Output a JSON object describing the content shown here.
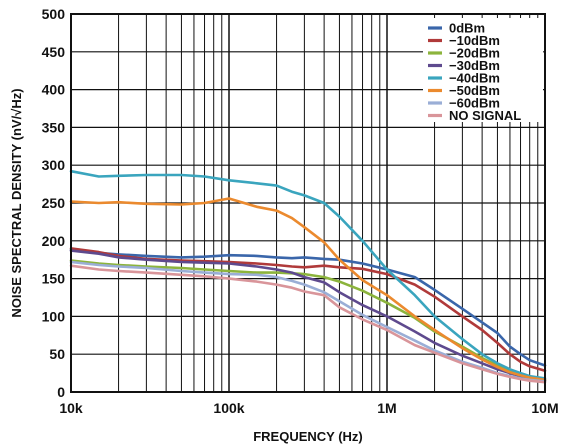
{
  "chart_data": {
    "type": "line",
    "title": "",
    "xlabel": "FREQUENCY (Hz)",
    "ylabel": "NOISE SPECTRAL DENSITY (nV/√Hz)",
    "x_scale": "log",
    "xlim": [
      10000,
      10000000
    ],
    "ylim": [
      0,
      500
    ],
    "x_ticks": [
      10000,
      100000,
      1000000,
      10000000
    ],
    "x_tick_labels": [
      "10k",
      "100k",
      "1M",
      "10M"
    ],
    "y_ticks": [
      0,
      50,
      100,
      150,
      200,
      250,
      300,
      350,
      400,
      450,
      500
    ],
    "y_tick_labels": [
      "0",
      "50",
      "100",
      "150",
      "200",
      "250",
      "300",
      "350",
      "400",
      "450",
      "500"
    ],
    "grid": true,
    "legend_position": "top-right",
    "series": [
      {
        "name": "0dBm",
        "color": "#3A66AA",
        "x": [
          10000,
          15000,
          20000,
          30000,
          50000,
          70000,
          100000,
          150000,
          200000,
          250000,
          300000,
          400000,
          500000,
          700000,
          1000000,
          1500000,
          2000000,
          3000000,
          4000000,
          5000000,
          6000000,
          7000000,
          8000000,
          10000000
        ],
        "y": [
          188,
          184,
          182,
          180,
          178,
          179,
          181,
          180,
          178,
          177,
          178,
          176,
          175,
          170,
          162,
          152,
          135,
          110,
          92,
          78,
          60,
          50,
          42,
          35
        ]
      },
      {
        "name": "−10dBm",
        "color": "#B03A3A",
        "x": [
          10000,
          15000,
          20000,
          30000,
          50000,
          70000,
          100000,
          150000,
          200000,
          250000,
          300000,
          400000,
          500000,
          700000,
          1000000,
          1500000,
          2000000,
          3000000,
          4000000,
          5000000,
          6000000,
          7000000,
          8000000,
          10000000
        ],
        "y": [
          190,
          185,
          180,
          176,
          174,
          173,
          172,
          170,
          168,
          166,
          165,
          167,
          165,
          163,
          156,
          142,
          126,
          100,
          82,
          65,
          50,
          40,
          34,
          28
        ]
      },
      {
        "name": "−20dBm",
        "color": "#8CB43C",
        "x": [
          10000,
          15000,
          20000,
          30000,
          50000,
          70000,
          100000,
          150000,
          200000,
          250000,
          300000,
          400000,
          500000,
          700000,
          1000000,
          1500000,
          2000000,
          3000000,
          4000000,
          5000000,
          6000000,
          7000000,
          8000000,
          10000000
        ],
        "y": [
          174,
          170,
          168,
          166,
          164,
          162,
          160,
          158,
          158,
          157,
          156,
          152,
          146,
          134,
          118,
          98,
          80,
          60,
          45,
          35,
          27,
          22,
          19,
          16
        ]
      },
      {
        "name": "−30dBm",
        "color": "#5E4A8E",
        "x": [
          10000,
          15000,
          20000,
          30000,
          50000,
          70000,
          100000,
          150000,
          200000,
          250000,
          300000,
          400000,
          500000,
          700000,
          1000000,
          1500000,
          2000000,
          3000000,
          4000000,
          5000000,
          6000000,
          7000000,
          8000000,
          10000000
        ],
        "y": [
          187,
          183,
          178,
          175,
          172,
          171,
          170,
          166,
          162,
          158,
          152,
          145,
          132,
          115,
          100,
          80,
          65,
          48,
          38,
          30,
          25,
          21,
          18,
          15
        ]
      },
      {
        "name": "−40dBm",
        "color": "#3AA5BE",
        "x": [
          10000,
          15000,
          20000,
          30000,
          50000,
          70000,
          100000,
          150000,
          200000,
          250000,
          300000,
          400000,
          500000,
          700000,
          1000000,
          1500000,
          2000000,
          3000000,
          4000000,
          5000000,
          6000000,
          7000000,
          8000000,
          10000000
        ],
        "y": [
          292,
          285,
          286,
          287,
          287,
          285,
          280,
          276,
          273,
          265,
          260,
          250,
          232,
          200,
          162,
          128,
          100,
          70,
          50,
          38,
          30,
          25,
          21,
          18
        ]
      },
      {
        "name": "−50dBm",
        "color": "#EB8A2E",
        "x": [
          10000,
          15000,
          20000,
          30000,
          50000,
          70000,
          100000,
          150000,
          200000,
          250000,
          300000,
          400000,
          500000,
          700000,
          1000000,
          1500000,
          2000000,
          3000000,
          4000000,
          5000000,
          6000000,
          7000000,
          8000000,
          10000000
        ],
        "y": [
          252,
          250,
          251,
          249,
          248,
          250,
          256,
          245,
          240,
          230,
          218,
          198,
          175,
          148,
          128,
          100,
          82,
          58,
          43,
          33,
          26,
          22,
          19,
          16
        ]
      },
      {
        "name": "−60dBm",
        "color": "#9AAED6",
        "x": [
          10000,
          15000,
          20000,
          30000,
          50000,
          70000,
          100000,
          150000,
          200000,
          250000,
          300000,
          400000,
          500000,
          700000,
          1000000,
          1500000,
          2000000,
          3000000,
          4000000,
          5000000,
          6000000,
          7000000,
          8000000,
          10000000
        ],
        "y": [
          172,
          168,
          166,
          164,
          160,
          158,
          156,
          155,
          152,
          147,
          142,
          132,
          120,
          102,
          86,
          68,
          55,
          40,
          32,
          25,
          21,
          18,
          16,
          14
        ]
      },
      {
        "name": "NO SIGNAL",
        "color": "#D9959A",
        "x": [
          10000,
          15000,
          20000,
          30000,
          50000,
          70000,
          100000,
          150000,
          200000,
          250000,
          300000,
          400000,
          500000,
          700000,
          1000000,
          1500000,
          2000000,
          3000000,
          4000000,
          5000000,
          6000000,
          7000000,
          8000000,
          10000000
        ],
        "y": [
          167,
          162,
          160,
          158,
          155,
          153,
          150,
          146,
          142,
          138,
          133,
          128,
          112,
          96,
          82,
          62,
          52,
          38,
          30,
          24,
          20,
          17,
          15,
          13
        ]
      }
    ]
  }
}
